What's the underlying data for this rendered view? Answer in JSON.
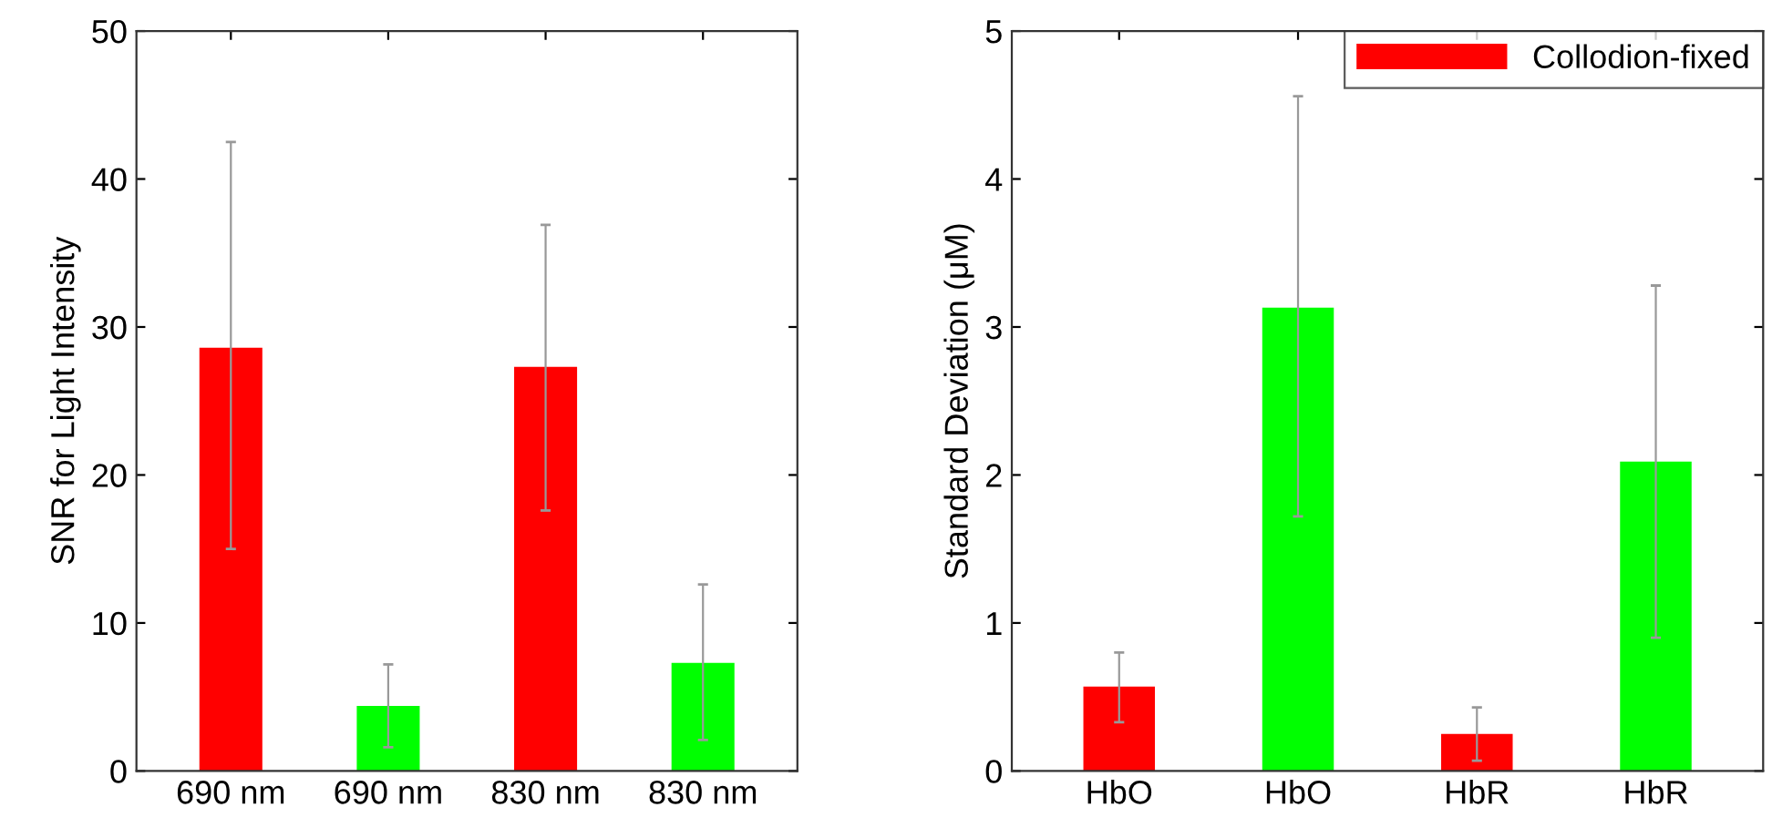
{
  "chart_data": [
    {
      "type": "bar",
      "ylabel": "SNR for Light Intensity",
      "categories": [
        "690 nm",
        "690 nm",
        "830 nm",
        "830 nm"
      ],
      "ylim": [
        0,
        50
      ],
      "yticks": [
        0,
        10,
        20,
        30,
        40,
        50
      ],
      "grid": false,
      "legend": false,
      "series": [
        {
          "color": "#ff0000",
          "values": [
            28.6,
            null,
            27.3,
            null
          ],
          "errors": [
            [
              15.0,
              42.5
            ],
            null,
            [
              17.6,
              36.9
            ],
            null
          ]
        },
        {
          "color": "#00ff00",
          "values": [
            null,
            4.4,
            null,
            7.3
          ],
          "errors": [
            null,
            [
              1.6,
              7.2
            ],
            null,
            [
              2.1,
              12.6
            ]
          ]
        }
      ]
    },
    {
      "type": "bar",
      "ylabel": "Standard Deviation (μM)",
      "categories": [
        "HbO",
        "HbO",
        "HbR",
        "HbR"
      ],
      "ylim": [
        0,
        5
      ],
      "yticks": [
        0,
        1,
        2,
        3,
        4,
        5
      ],
      "grid": false,
      "legend": "top right",
      "series": [
        {
          "name": "Collodion-fixed",
          "color": "#ff0000",
          "values": [
            0.57,
            null,
            0.25,
            null
          ],
          "errors": [
            [
              0.33,
              0.8
            ],
            null,
            [
              0.07,
              0.43
            ],
            null
          ]
        },
        {
          "color": "#00ff00",
          "values": [
            null,
            3.13,
            null,
            2.09
          ],
          "errors": [
            null,
            [
              1.72,
              4.56
            ],
            null,
            [
              0.9,
              3.28
            ]
          ]
        }
      ]
    }
  ]
}
